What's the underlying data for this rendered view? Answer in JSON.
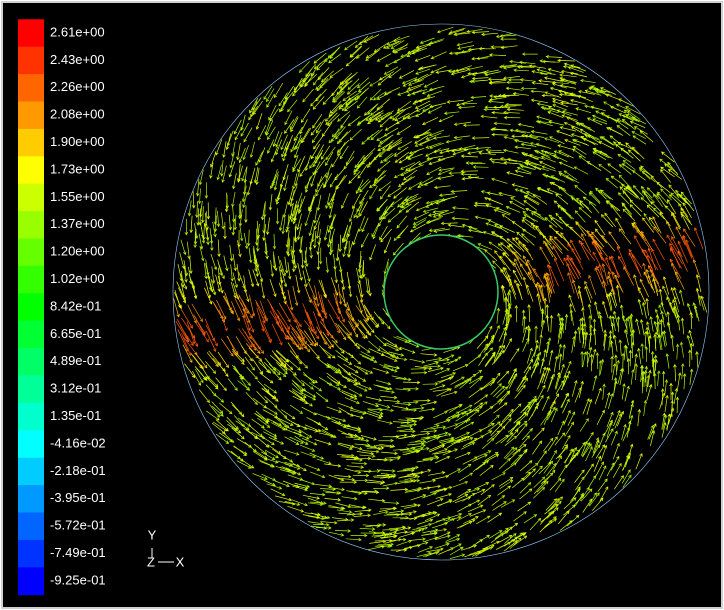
{
  "colorbar": {
    "labels": [
      "2.61e+00",
      "2.43e+00",
      "2.26e+00",
      "2.08e+00",
      "1.90e+00",
      "1.73e+00",
      "1.55e+00",
      "1.37e+00",
      "1.20e+00",
      "1.02e+00",
      "8.42e-01",
      "6.65e-01",
      "4.89e-01",
      "3.12e-01",
      "1.35e-01",
      "-4.16e-02",
      "-2.18e-01",
      "-3.95e-01",
      "-5.72e-01",
      "-7.49e-01",
      "-9.25e-01"
    ]
  },
  "axes": {
    "y": "Y",
    "z": "Z",
    "x": "X"
  }
}
